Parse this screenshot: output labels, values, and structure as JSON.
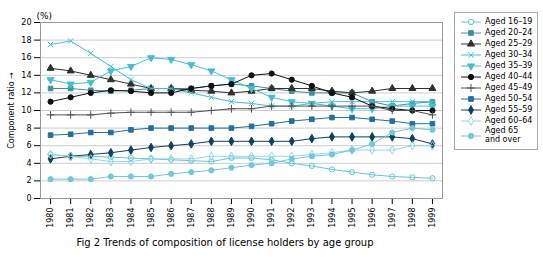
{
  "chart_data": {
    "type": "line",
    "title": "Fig 2  Trends of composition of license holders by age group",
    "ylabel": "Component ratio",
    "annotations": [
      "(%)"
    ],
    "x": [
      1980,
      1981,
      1982,
      1983,
      1984,
      1985,
      1986,
      1987,
      1988,
      1989,
      1990,
      1991,
      1992,
      1993,
      1994,
      1995,
      1996,
      1997,
      1998,
      1999
    ],
    "xlim": [
      1979.5,
      1999.5
    ],
    "xticks": [
      1980,
      1981,
      1982,
      1983,
      1984,
      1985,
      1986,
      1987,
      1988,
      1989,
      1990,
      1991,
      1992,
      1993,
      1994,
      1995,
      1996,
      1997,
      1998,
      1999
    ],
    "ylim": [
      0,
      20
    ],
    "yticks": [
      0,
      2,
      4,
      6,
      8,
      10,
      12,
      14,
      16,
      18,
      20
    ],
    "grid": true,
    "legend": "right",
    "series": [
      {
        "name": "Aged 16–19",
        "color": "#60c8d0",
        "marker": "circle-open",
        "values": [
          5.0,
          4.8,
          4.8,
          4.7,
          4.6,
          4.5,
          4.4,
          4.3,
          4.2,
          4.6,
          4.6,
          4.4,
          4.0,
          3.7,
          3.3,
          3.0,
          2.7,
          2.5,
          2.4,
          2.3
        ]
      },
      {
        "name": "Aged 20–24",
        "color": "#4090a0",
        "marker": "square",
        "values": [
          12.5,
          12.5,
          12.3,
          12.2,
          12.3,
          12.5,
          12.5,
          12.5,
          12.8,
          13.0,
          12.8,
          12.5,
          12.2,
          12.0,
          12.0,
          12.0,
          11.0,
          10.5,
          10.8,
          11.0
        ]
      },
      {
        "name": "Aged 25–29",
        "color": "#303030",
        "marker": "triangle-up",
        "values": [
          14.8,
          14.5,
          14.0,
          13.5,
          13.0,
          12.5,
          12.5,
          12.3,
          12.2,
          12.0,
          12.2,
          12.5,
          12.5,
          12.5,
          12.2,
          12.0,
          12.2,
          12.5,
          12.5,
          12.5
        ]
      },
      {
        "name": "Aged 30–34",
        "color": "#40c0d0",
        "marker": "x",
        "values": [
          17.5,
          17.9,
          16.5,
          15.0,
          13.5,
          12.5,
          12.5,
          12.0,
          11.5,
          11.0,
          10.8,
          10.5,
          10.5,
          10.8,
          11.0,
          11.0,
          11.0,
          11.0,
          11.0,
          11.0
        ]
      },
      {
        "name": "Aged 35–39",
        "color": "#40c0d0",
        "marker": "triangle-down",
        "values": [
          13.5,
          13.0,
          13.2,
          14.5,
          15.0,
          16.0,
          15.8,
          15.2,
          14.5,
          13.5,
          12.5,
          11.5,
          11.0,
          10.8,
          10.5,
          10.2,
          10.2,
          10.5,
          10.5,
          10.5
        ]
      },
      {
        "name": "Aged 40–44",
        "color": "#101010",
        "marker": "circle",
        "values": [
          11.0,
          11.5,
          12.0,
          12.3,
          12.2,
          12.0,
          12.0,
          12.5,
          12.8,
          13.0,
          14.0,
          14.2,
          13.5,
          12.8,
          12.0,
          11.5,
          10.5,
          10.2,
          10.0,
          10.0
        ]
      },
      {
        "name": "Aged 45–49",
        "color": "#505050",
        "marker": "plus",
        "values": [
          9.5,
          9.5,
          9.5,
          9.7,
          9.8,
          9.8,
          9.8,
          9.8,
          10.0,
          10.2,
          10.2,
          10.5,
          10.5,
          10.5,
          10.5,
          10.5,
          10.5,
          10.0,
          10.0,
          9.5
        ]
      },
      {
        "name": "Aged 50–54",
        "color": "#2070a0",
        "marker": "square",
        "values": [
          7.2,
          7.3,
          7.5,
          7.5,
          7.8,
          8.0,
          8.0,
          8.0,
          8.0,
          8.0,
          8.2,
          8.5,
          8.8,
          9.0,
          9.2,
          9.2,
          9.0,
          8.8,
          8.5,
          8.5
        ]
      },
      {
        "name": "Aged 55–59",
        "color": "#104060",
        "marker": "diamond",
        "values": [
          4.5,
          4.8,
          5.0,
          5.2,
          5.5,
          5.8,
          6.0,
          6.2,
          6.5,
          6.5,
          6.5,
          6.5,
          6.5,
          6.8,
          7.0,
          7.0,
          7.0,
          7.0,
          6.8,
          6.2
        ]
      },
      {
        "name": "Aged 60–64",
        "color": "#90d8e8",
        "marker": "diamond-open",
        "values": [
          5.0,
          4.8,
          4.5,
          4.2,
          4.2,
          4.5,
          4.5,
          4.5,
          4.8,
          4.8,
          4.8,
          4.8,
          4.8,
          5.0,
          5.2,
          5.5,
          5.5,
          5.5,
          6.0,
          6.0
        ]
      },
      {
        "name": "Aged 65\nand over",
        "color": "#70c8d8",
        "marker": "circle",
        "values": [
          2.2,
          2.2,
          2.2,
          2.5,
          2.5,
          2.5,
          2.8,
          3.0,
          3.2,
          3.5,
          3.8,
          4.0,
          4.5,
          4.8,
          5.0,
          5.5,
          6.2,
          7.5,
          8.0,
          7.8
        ]
      }
    ]
  }
}
